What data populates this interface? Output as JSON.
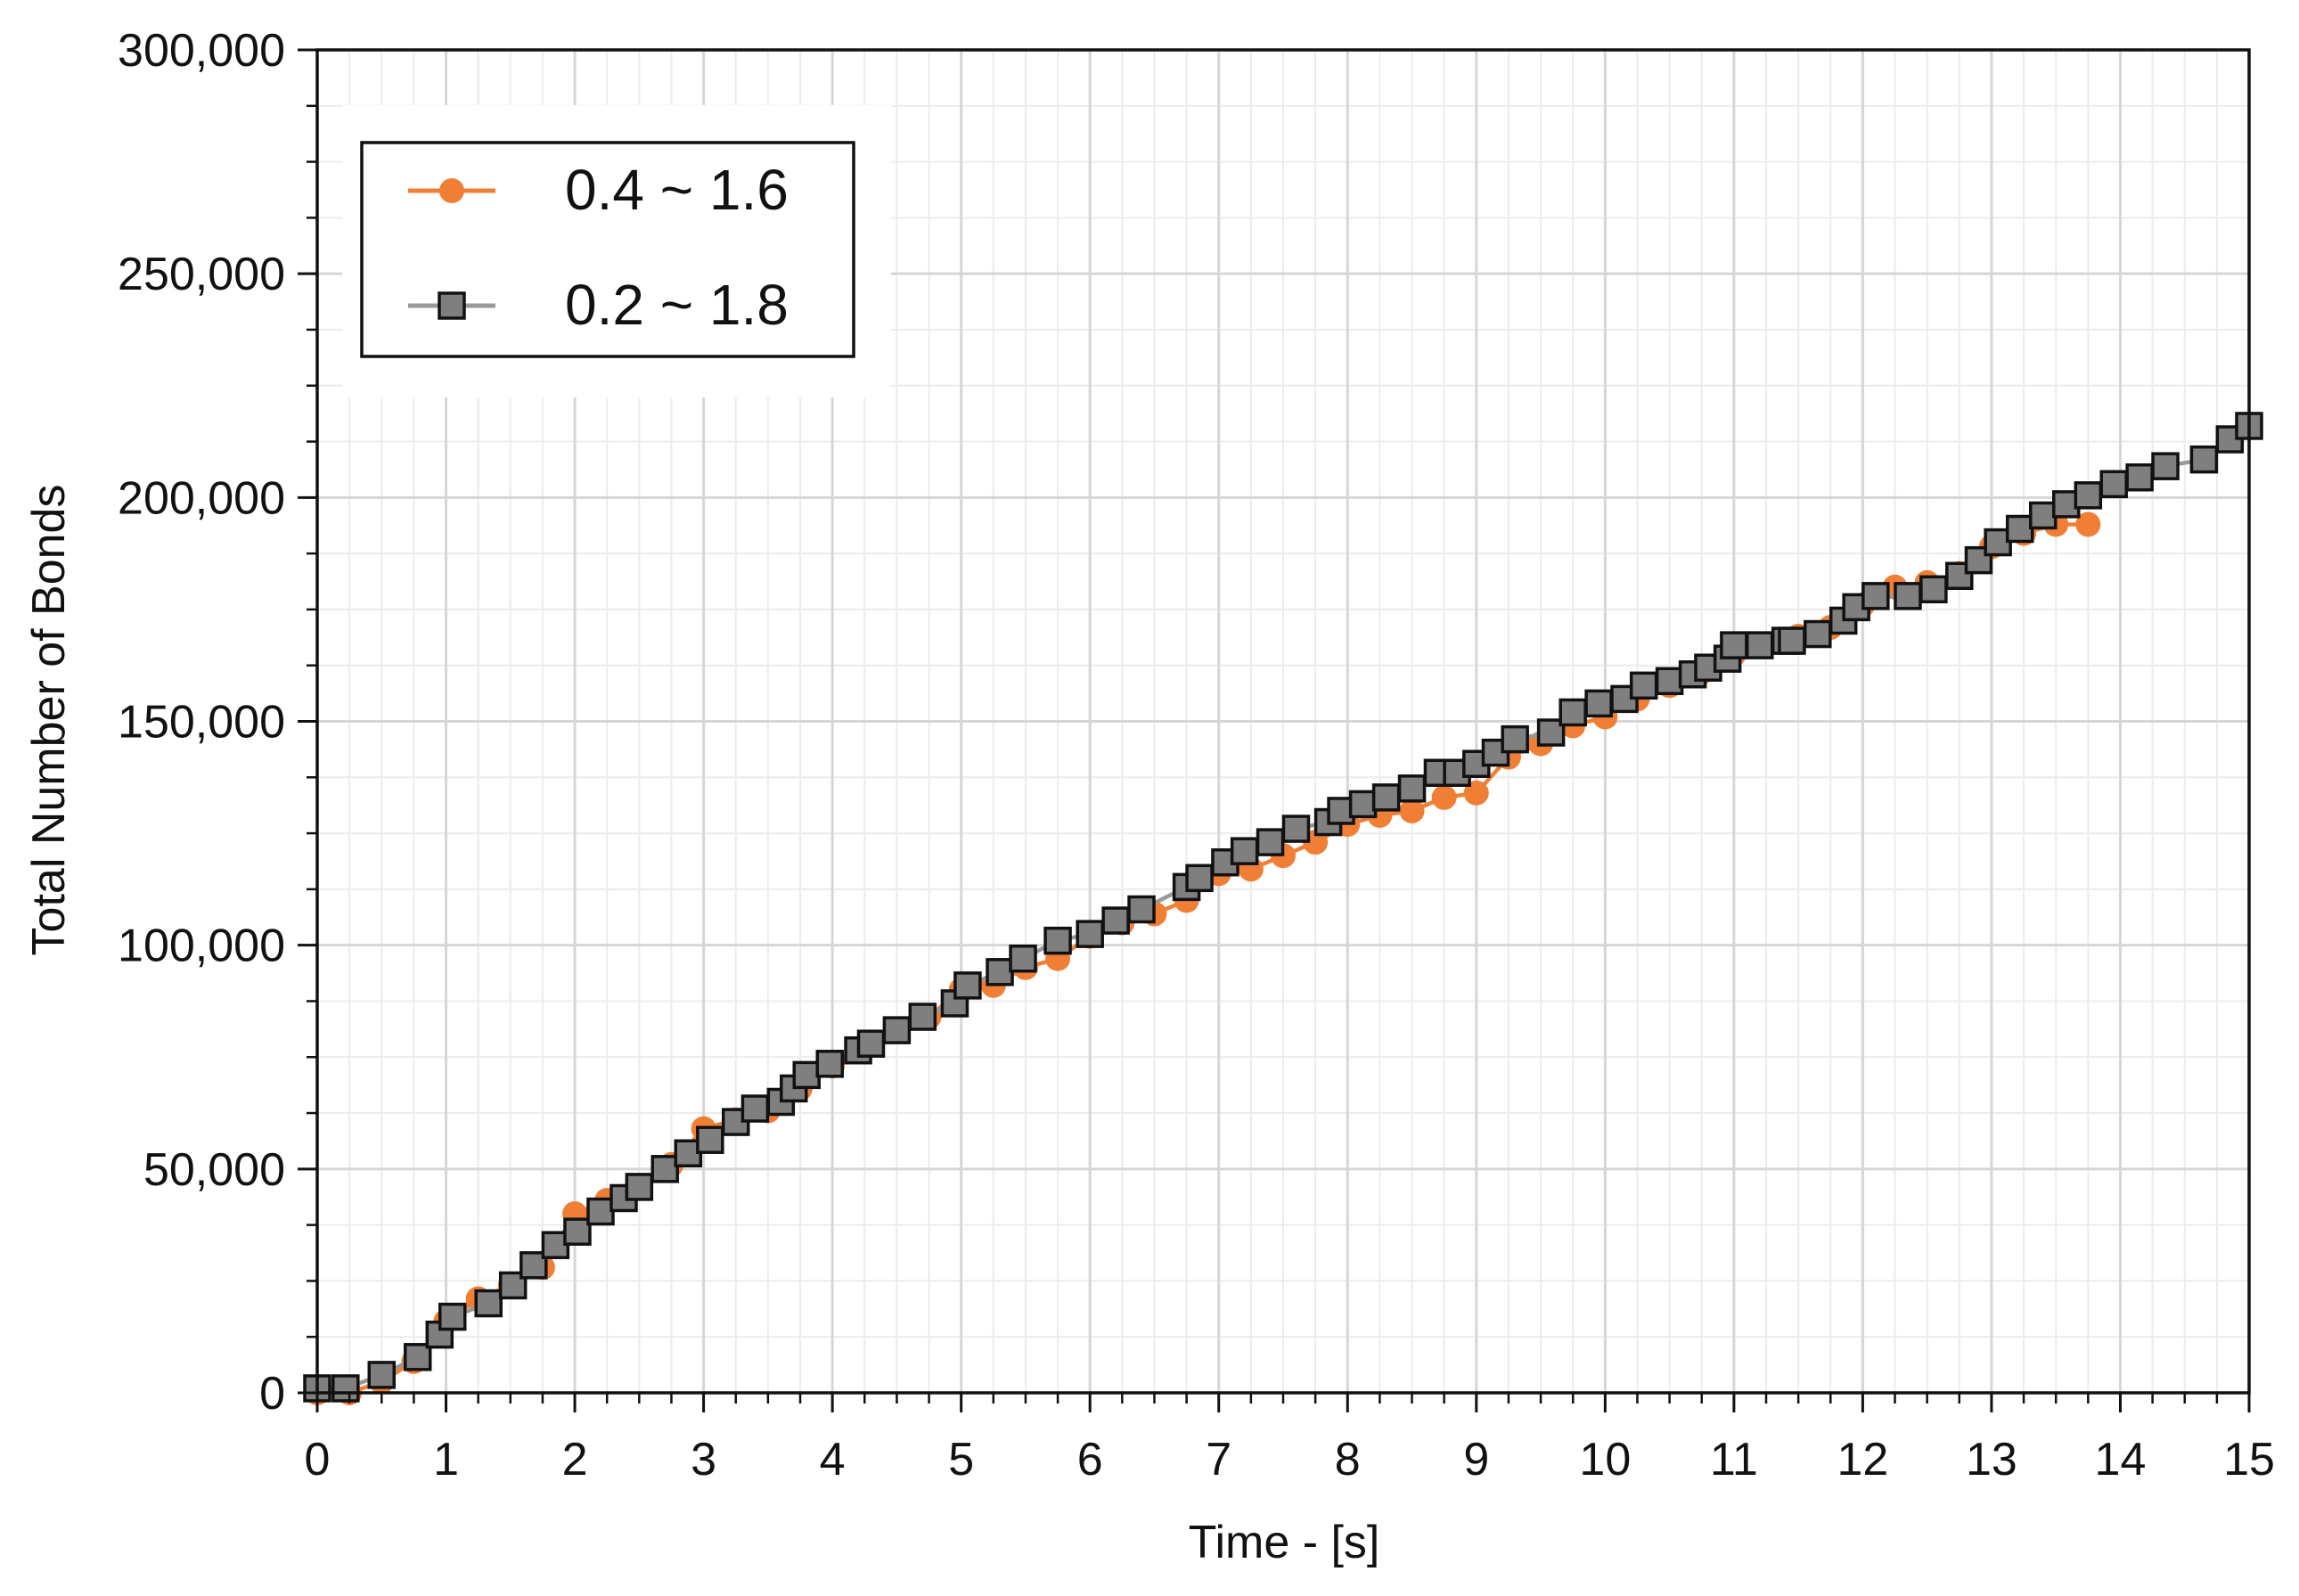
{
  "chart_data": {
    "type": "line",
    "title": "",
    "xlabel": "Time - [s]",
    "ylabel": "Total Number of Bonds",
    "xlim": [
      0,
      15
    ],
    "ylim": [
      0,
      300000
    ],
    "x_ticks": [
      0,
      1,
      2,
      3,
      4,
      5,
      6,
      7,
      8,
      9,
      10,
      11,
      12,
      13,
      14,
      15
    ],
    "x_tick_labels": [
      "0",
      "1",
      "2",
      "3",
      "4",
      "5",
      "6",
      "7",
      "8",
      "9",
      "10",
      "11",
      "12",
      "13",
      "14",
      "15"
    ],
    "y_ticks": [
      0,
      50000,
      100000,
      150000,
      200000,
      250000,
      300000
    ],
    "y_tick_labels": [
      "0",
      "50,000",
      "100,000",
      "150,000",
      "200,000",
      "250,000",
      "300,000"
    ],
    "grid": true,
    "legend_position": "top-left",
    "series": [
      {
        "name": "0.4 ~ 1.6",
        "color": "#f07f35",
        "marker": "circle",
        "points": [
          [
            0.0,
            0
          ],
          [
            0.25,
            0
          ],
          [
            0.5,
            2500
          ],
          [
            0.75,
            7000
          ],
          [
            1.0,
            16000
          ],
          [
            1.25,
            21000
          ],
          [
            1.5,
            24000
          ],
          [
            1.75,
            28000
          ],
          [
            2.0,
            40000
          ],
          [
            2.25,
            43000
          ],
          [
            2.5,
            46000
          ],
          [
            2.75,
            51000
          ],
          [
            3.0,
            59000
          ],
          [
            3.25,
            61000
          ],
          [
            3.5,
            63000
          ],
          [
            3.75,
            68000
          ],
          [
            4.0,
            73000
          ],
          [
            4.25,
            77000
          ],
          [
            4.5,
            81000
          ],
          [
            4.75,
            84000
          ],
          [
            5.0,
            90000
          ],
          [
            5.25,
            91000
          ],
          [
            5.5,
            95000
          ],
          [
            5.75,
            97000
          ],
          [
            6.0,
            102000
          ],
          [
            6.25,
            105000
          ],
          [
            6.5,
            107000
          ],
          [
            6.75,
            110000
          ],
          [
            7.0,
            116000
          ],
          [
            7.25,
            117000
          ],
          [
            7.5,
            120000
          ],
          [
            7.75,
            123000
          ],
          [
            8.0,
            127000
          ],
          [
            8.25,
            129000
          ],
          [
            8.5,
            130000
          ],
          [
            8.75,
            133000
          ],
          [
            9.0,
            134000
          ],
          [
            9.25,
            142000
          ],
          [
            9.5,
            145000
          ],
          [
            9.75,
            149000
          ],
          [
            10.0,
            151000
          ],
          [
            10.25,
            155000
          ],
          [
            10.5,
            158000
          ],
          [
            10.75,
            161000
          ],
          [
            11.0,
            165000
          ],
          [
            11.25,
            167000
          ],
          [
            11.5,
            169000
          ],
          [
            11.75,
            171000
          ],
          [
            12.0,
            176000
          ],
          [
            12.25,
            180000
          ],
          [
            12.5,
            181000
          ],
          [
            12.75,
            183000
          ],
          [
            13.0,
            189000
          ],
          [
            13.25,
            192000
          ],
          [
            13.5,
            194000
          ],
          [
            13.75,
            194000
          ]
        ]
      },
      {
        "name": "0.2 ~ 1.8",
        "color": "#7f7f7f",
        "marker": "square",
        "points": [
          [
            0.0,
            1000
          ],
          [
            0.22,
            1000
          ],
          [
            0.5,
            4000
          ],
          [
            0.78,
            8000
          ],
          [
            0.95,
            13000
          ],
          [
            1.05,
            17000
          ],
          [
            1.33,
            20000
          ],
          [
            1.52,
            24000
          ],
          [
            1.68,
            28500
          ],
          [
            1.85,
            33000
          ],
          [
            2.02,
            36000
          ],
          [
            2.2,
            40500
          ],
          [
            2.38,
            43500
          ],
          [
            2.5,
            46000
          ],
          [
            2.7,
            50000
          ],
          [
            2.88,
            53500
          ],
          [
            3.05,
            56500
          ],
          [
            3.25,
            60500
          ],
          [
            3.4,
            63500
          ],
          [
            3.6,
            65000
          ],
          [
            3.7,
            68000
          ],
          [
            3.8,
            71000
          ],
          [
            3.98,
            73500
          ],
          [
            4.2,
            76500
          ],
          [
            4.3,
            78000
          ],
          [
            4.5,
            81000
          ],
          [
            4.7,
            84000
          ],
          [
            4.95,
            87000
          ],
          [
            5.05,
            91000
          ],
          [
            5.3,
            94000
          ],
          [
            5.48,
            97000
          ],
          [
            5.75,
            101000
          ],
          [
            6.0,
            102500
          ],
          [
            6.2,
            105500
          ],
          [
            6.4,
            108000
          ],
          [
            6.75,
            113000
          ],
          [
            6.85,
            115000
          ],
          [
            7.05,
            118500
          ],
          [
            7.2,
            121000
          ],
          [
            7.4,
            123000
          ],
          [
            7.6,
            126000
          ],
          [
            7.85,
            127500
          ],
          [
            7.95,
            130000
          ],
          [
            8.12,
            131500
          ],
          [
            8.3,
            133000
          ],
          [
            8.5,
            135000
          ],
          [
            8.7,
            138500
          ],
          [
            8.85,
            138500
          ],
          [
            9.0,
            140500
          ],
          [
            9.15,
            143000
          ],
          [
            9.3,
            146000
          ],
          [
            9.58,
            147500
          ],
          [
            9.75,
            152000
          ],
          [
            9.95,
            154000
          ],
          [
            10.15,
            155000
          ],
          [
            10.3,
            158000
          ],
          [
            10.5,
            159000
          ],
          [
            10.68,
            160500
          ],
          [
            10.8,
            162000
          ],
          [
            10.95,
            164000
          ],
          [
            11.0,
            167000
          ],
          [
            11.2,
            167000
          ],
          [
            11.4,
            168000
          ],
          [
            11.45,
            168000
          ],
          [
            11.65,
            169500
          ],
          [
            11.85,
            172500
          ],
          [
            11.95,
            175500
          ],
          [
            12.1,
            178000
          ],
          [
            12.35,
            178000
          ],
          [
            12.55,
            179500
          ],
          [
            12.75,
            182500
          ],
          [
            12.9,
            186000
          ],
          [
            13.05,
            190000
          ],
          [
            13.22,
            193000
          ],
          [
            13.4,
            196000
          ],
          [
            13.58,
            198500
          ],
          [
            13.75,
            200500
          ],
          [
            13.95,
            203000
          ],
          [
            14.15,
            204500
          ],
          [
            14.35,
            207000
          ],
          [
            14.65,
            208500
          ],
          [
            14.85,
            213000
          ],
          [
            15.0,
            216000
          ]
        ]
      }
    ]
  }
}
